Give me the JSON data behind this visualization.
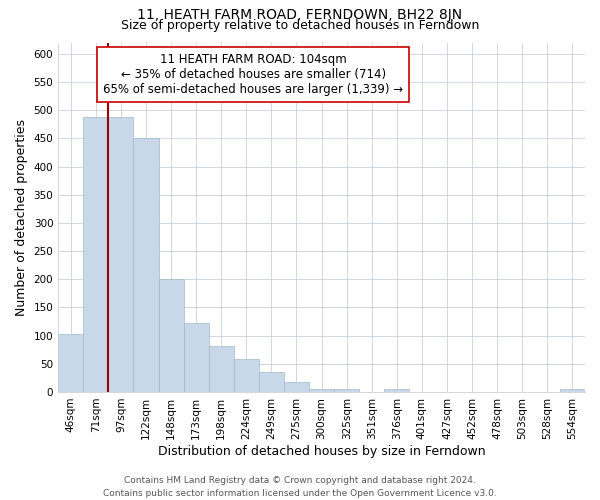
{
  "title": "11, HEATH FARM ROAD, FERNDOWN, BH22 8JN",
  "subtitle": "Size of property relative to detached houses in Ferndown",
  "xlabel": "Distribution of detached houses by size in Ferndown",
  "ylabel": "Number of detached properties",
  "categories": [
    "46sqm",
    "71sqm",
    "97sqm",
    "122sqm",
    "148sqm",
    "173sqm",
    "198sqm",
    "224sqm",
    "249sqm",
    "275sqm",
    "300sqm",
    "325sqm",
    "351sqm",
    "376sqm",
    "401sqm",
    "427sqm",
    "452sqm",
    "478sqm",
    "503sqm",
    "528sqm",
    "554sqm"
  ],
  "values": [
    103,
    487,
    487,
    450,
    200,
    122,
    82,
    58,
    36,
    17,
    5,
    5,
    0,
    5,
    0,
    0,
    0,
    0,
    0,
    0,
    5
  ],
  "bar_color": "#c8d8e8",
  "bar_edge_color": "#a0b8cc",
  "vline_color": "#990000",
  "annotation_line1": "11 HEATH FARM ROAD: 104sqm",
  "annotation_line2": "← 35% of detached houses are smaller (714)",
  "annotation_line3": "65% of semi-detached houses are larger (1,339) →",
  "annotation_box_color": "white",
  "annotation_box_edge": "#cc0000",
  "ylim": [
    0,
    620
  ],
  "yticks": [
    0,
    50,
    100,
    150,
    200,
    250,
    300,
    350,
    400,
    450,
    500,
    550,
    600
  ],
  "footer_line1": "Contains HM Land Registry data © Crown copyright and database right 2024.",
  "footer_line2": "Contains public sector information licensed under the Open Government Licence v3.0.",
  "title_fontsize": 10,
  "subtitle_fontsize": 9,
  "axis_label_fontsize": 9,
  "tick_fontsize": 7.5,
  "annotation_fontsize": 8.5,
  "footer_fontsize": 6.5
}
